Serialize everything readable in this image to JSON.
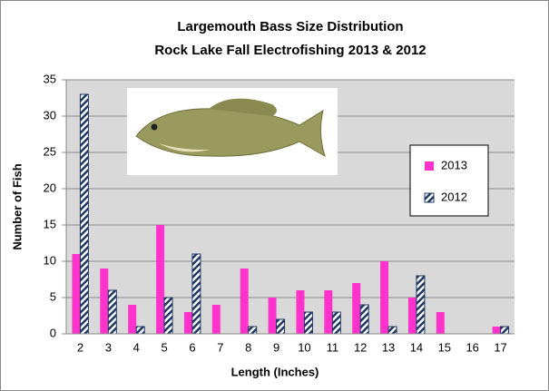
{
  "chart_data": {
    "type": "bar",
    "title": [
      "Largemouth Bass Size Distribution",
      "Rock Lake Fall Electrofishing 2013 & 2012"
    ],
    "x_label": "Length (Inches)",
    "y_label": "Number of Fish",
    "categories": [
      "2",
      "3",
      "4",
      "5",
      "6",
      "7",
      "8",
      "9",
      "10",
      "11",
      "12",
      "13",
      "14",
      "15",
      "16",
      "17"
    ],
    "series": [
      {
        "name": "2013",
        "color": "#ff33cc",
        "values": [
          11,
          9,
          4,
          15,
          3,
          4,
          9,
          5,
          6,
          6,
          7,
          10,
          5,
          3,
          0,
          1
        ]
      },
      {
        "name": "2012",
        "color": "#1f3864",
        "values": [
          33,
          6,
          1,
          5,
          11,
          0,
          1,
          2,
          3,
          3,
          4,
          1,
          8,
          0,
          0,
          1
        ]
      }
    ],
    "ylim": [
      0,
      35
    ],
    "yticks": [
      0,
      5,
      10,
      15,
      20,
      25,
      30,
      35
    ],
    "grid": true
  }
}
